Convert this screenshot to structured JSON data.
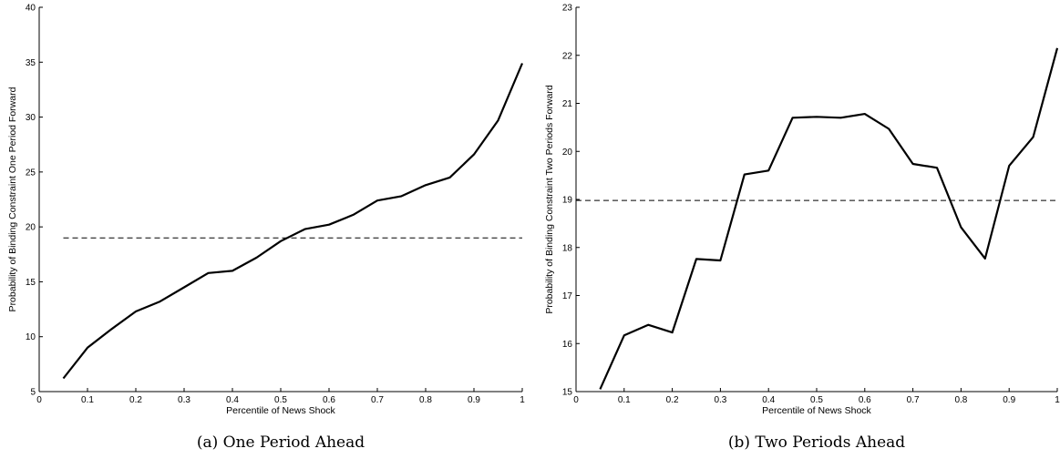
{
  "chart_data": [
    {
      "type": "line",
      "caption": "(a) One Period Ahead",
      "xlabel": "Percentile of News Shock",
      "ylabel": "Probability of Binding Constraint One Period Forward",
      "xlim": [
        0,
        1
      ],
      "ylim": [
        5,
        40
      ],
      "xticks": [
        0,
        0.1,
        0.2,
        0.3,
        0.4,
        0.5,
        0.6,
        0.7,
        0.8,
        0.9,
        1
      ],
      "xtick_labels": [
        "0",
        "0.1",
        "0.2",
        "0.3",
        "0.4",
        "0.5",
        "0.6",
        "0.7",
        "0.8",
        "0.9",
        "1"
      ],
      "yticks": [
        5,
        10,
        15,
        20,
        25,
        30,
        35,
        40
      ],
      "ytick_labels": [
        "5",
        "10",
        "15",
        "20",
        "25",
        "30",
        "35",
        "40"
      ],
      "grid": false,
      "series": [
        {
          "style": "solid",
          "x": [
            0.05,
            0.1,
            0.15,
            0.2,
            0.25,
            0.3,
            0.35,
            0.4,
            0.45,
            0.5,
            0.55,
            0.6,
            0.65,
            0.7,
            0.75,
            0.8,
            0.85,
            0.9,
            0.95,
            1.0
          ],
          "y": [
            6.2,
            9.0,
            10.7,
            12.3,
            13.2,
            14.5,
            15.8,
            16.0,
            17.2,
            18.7,
            19.8,
            20.2,
            21.1,
            22.4,
            22.8,
            23.8,
            24.5,
            26.6,
            29.7,
            34.9
          ]
        },
        {
          "style": "dashed",
          "x": [
            0.05,
            1.0
          ],
          "y": [
            19.0,
            19.0
          ]
        }
      ]
    },
    {
      "type": "line",
      "caption": "(b) Two Periods Ahead",
      "xlabel": "Percentile of News Shock",
      "ylabel": "Probability of Binding Constraint Two Periods Forward",
      "xlim": [
        0,
        1
      ],
      "ylim": [
        15,
        23
      ],
      "xticks": [
        0,
        0.1,
        0.2,
        0.3,
        0.4,
        0.5,
        0.6,
        0.7,
        0.8,
        0.9,
        1
      ],
      "xtick_labels": [
        "0",
        "0.1",
        "0.2",
        "0.3",
        "0.4",
        "0.5",
        "0.6",
        "0.7",
        "0.8",
        "0.9",
        "1"
      ],
      "yticks": [
        15,
        16,
        17,
        18,
        19,
        20,
        21,
        22,
        23
      ],
      "ytick_labels": [
        "15",
        "16",
        "17",
        "18",
        "19",
        "20",
        "21",
        "22",
        "23"
      ],
      "grid": false,
      "series": [
        {
          "style": "solid",
          "x": [
            0.05,
            0.1,
            0.15,
            0.2,
            0.25,
            0.3,
            0.35,
            0.4,
            0.45,
            0.5,
            0.55,
            0.6,
            0.65,
            0.7,
            0.75,
            0.8,
            0.85,
            0.9,
            0.95,
            1.0
          ],
          "y": [
            15.05,
            16.17,
            16.39,
            16.23,
            17.76,
            17.73,
            19.52,
            19.6,
            20.7,
            20.72,
            20.7,
            20.78,
            20.47,
            19.74,
            19.66,
            18.42,
            17.77,
            19.7,
            20.3,
            22.15
          ]
        },
        {
          "style": "dashed",
          "x": [
            0.0,
            1.0
          ],
          "y": [
            18.98,
            18.98
          ]
        }
      ]
    }
  ]
}
